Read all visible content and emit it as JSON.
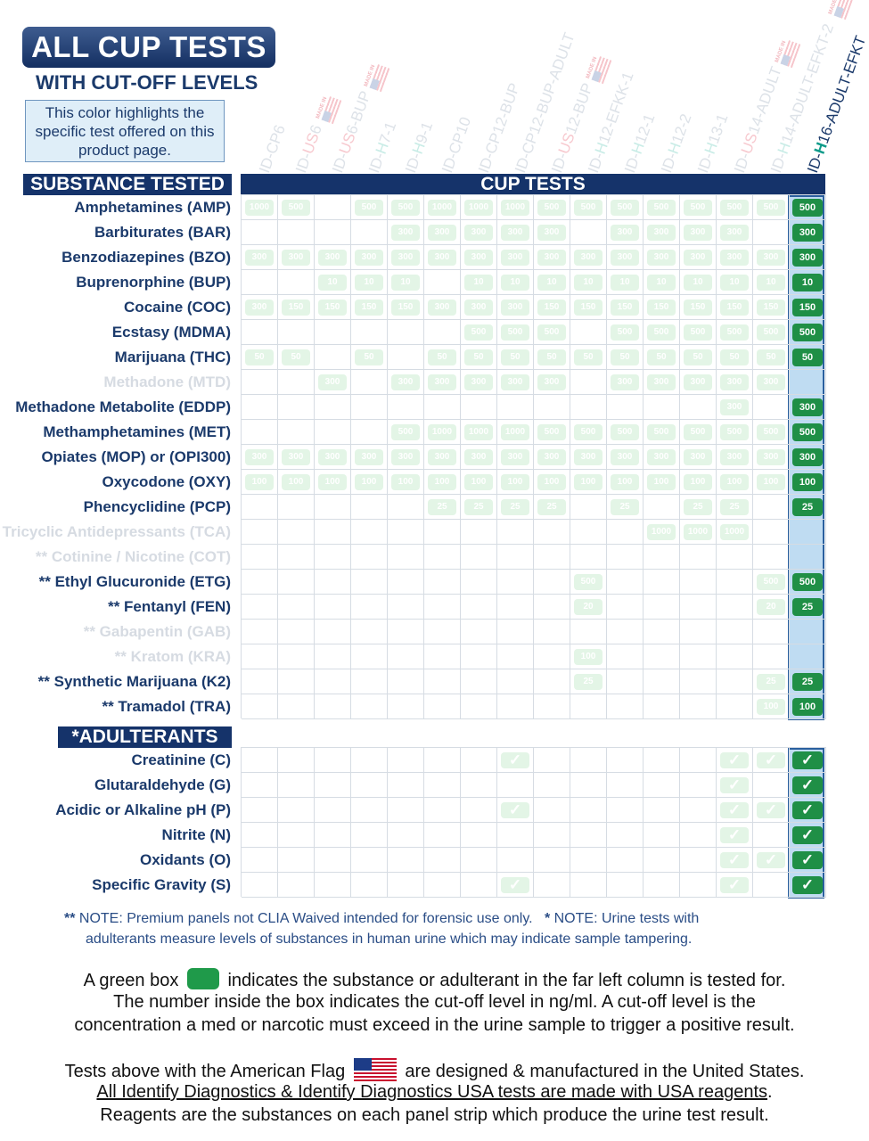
{
  "header": {
    "title": "ALL CUP TESTS",
    "subtitle": "WITH CUT-OFF LEVELS",
    "highlight_note": "This color highlights the specific test offered on this product page.",
    "flag_text": "MADE IN"
  },
  "table": {
    "substance_header": "SUBSTANCE TESTED",
    "cup_header": "CUP TESTS",
    "adulterants_header": "*ADULTERANTS",
    "columns": [
      {
        "pre": "ID-",
        "us": "",
        "h": "",
        "post": "CP6",
        "flag": false
      },
      {
        "pre": "ID-",
        "us": "US",
        "h": "",
        "post": "6",
        "flag": true
      },
      {
        "pre": "ID-",
        "us": "US",
        "h": "",
        "post": "6-BUP",
        "flag": true
      },
      {
        "pre": "ID-",
        "us": "",
        "h": "H",
        "post": "7-1",
        "flag": false
      },
      {
        "pre": "ID-",
        "us": "",
        "h": "H",
        "post": "9-1",
        "flag": false
      },
      {
        "pre": "ID-",
        "us": "",
        "h": "",
        "post": "CP10",
        "flag": false
      },
      {
        "pre": "ID-",
        "us": "",
        "h": "",
        "post": "CP12-BUP",
        "flag": false
      },
      {
        "pre": "ID-",
        "us": "",
        "h": "",
        "post": "CP12-BUP-ADULT",
        "flag": false
      },
      {
        "pre": "ID-",
        "us": "US",
        "h": "",
        "post": "12-BUP",
        "flag": true
      },
      {
        "pre": "ID-",
        "us": "",
        "h": "H",
        "post": "12-EFKK-1",
        "flag": false
      },
      {
        "pre": "ID-",
        "us": "",
        "h": "H",
        "post": "12-1",
        "flag": false
      },
      {
        "pre": "ID-",
        "us": "",
        "h": "H",
        "post": "12-2",
        "flag": false
      },
      {
        "pre": "ID-",
        "us": "",
        "h": "H",
        "post": "13-1",
        "flag": false
      },
      {
        "pre": "ID-",
        "us": "US",
        "h": "",
        "post": "14-ADULT",
        "flag": true
      },
      {
        "pre": "ID-",
        "us": "",
        "h": "H",
        "post": "14-ADULT-EFKT-2",
        "flag": true
      },
      {
        "pre": "ID-",
        "us": "",
        "h": "H",
        "post": "16-ADULT-EFKT",
        "flag": false,
        "active": true
      }
    ],
    "substances": [
      {
        "label": "Amphetamines (AMP)",
        "faded": false,
        "values": [
          "1000",
          "500",
          "",
          "500",
          "500",
          "1000",
          "1000",
          "1000",
          "500",
          "500",
          "500",
          "500",
          "500",
          "500",
          "500",
          "500"
        ]
      },
      {
        "label": "Barbiturates (BAR)",
        "faded": false,
        "values": [
          "",
          "",
          "",
          "",
          "300",
          "300",
          "300",
          "300",
          "300",
          "",
          "300",
          "300",
          "300",
          "300",
          "",
          "300"
        ]
      },
      {
        "label": "Benzodiazepines (BZO)",
        "faded": false,
        "values": [
          "300",
          "300",
          "300",
          "300",
          "300",
          "300",
          "300",
          "300",
          "300",
          "300",
          "300",
          "300",
          "300",
          "300",
          "300",
          "300"
        ]
      },
      {
        "label": "Buprenorphine (BUP)",
        "faded": false,
        "values": [
          "",
          "",
          "10",
          "10",
          "10",
          "",
          "10",
          "10",
          "10",
          "10",
          "10",
          "10",
          "10",
          "10",
          "10",
          "10"
        ]
      },
      {
        "label": "Cocaine (COC)",
        "faded": false,
        "values": [
          "300",
          "150",
          "150",
          "150",
          "150",
          "300",
          "300",
          "300",
          "150",
          "150",
          "150",
          "150",
          "150",
          "150",
          "150",
          "150"
        ]
      },
      {
        "label": "Ecstasy (MDMA)",
        "faded": false,
        "values": [
          "",
          "",
          "",
          "",
          "",
          "",
          "500",
          "500",
          "500",
          "",
          "500",
          "500",
          "500",
          "500",
          "500",
          "500"
        ]
      },
      {
        "label": "Marijuana (THC)",
        "faded": false,
        "values": [
          "50",
          "50",
          "",
          "50",
          "",
          "50",
          "50",
          "50",
          "50",
          "50",
          "50",
          "50",
          "50",
          "50",
          "50",
          "50"
        ]
      },
      {
        "label": "Methadone (MTD)",
        "faded": true,
        "values": [
          "",
          "",
          "300",
          "",
          "300",
          "300",
          "300",
          "300",
          "300",
          "",
          "300",
          "300",
          "300",
          "300",
          "300",
          ""
        ]
      },
      {
        "label": "Methadone Metabolite (EDDP)",
        "faded": false,
        "values": [
          "",
          "",
          "",
          "",
          "",
          "",
          "",
          "",
          "",
          "",
          "",
          "",
          "",
          "300",
          "",
          "300"
        ]
      },
      {
        "label": "Methamphetamines (MET)",
        "faded": false,
        "values": [
          "",
          "",
          "",
          "",
          "500",
          "1000",
          "1000",
          "1000",
          "500",
          "500",
          "500",
          "500",
          "500",
          "500",
          "500",
          "500"
        ]
      },
      {
        "label": "Opiates (MOP) or (OPI300)",
        "faded": false,
        "values": [
          "300",
          "300",
          "300",
          "300",
          "300",
          "300",
          "300",
          "300",
          "300",
          "300",
          "300",
          "300",
          "300",
          "300",
          "300",
          "300"
        ]
      },
      {
        "label": "Oxycodone (OXY)",
        "faded": false,
        "values": [
          "100",
          "100",
          "100",
          "100",
          "100",
          "100",
          "100",
          "100",
          "100",
          "100",
          "100",
          "100",
          "100",
          "100",
          "100",
          "100"
        ]
      },
      {
        "label": "Phencyclidine (PCP)",
        "faded": false,
        "values": [
          "",
          "",
          "",
          "",
          "",
          "25",
          "25",
          "25",
          "25",
          "",
          "25",
          "",
          "25",
          "25",
          "",
          "25"
        ]
      },
      {
        "label": "Tricyclic Antidepressants (TCA)",
        "faded": true,
        "values": [
          "",
          "",
          "",
          "",
          "",
          "",
          "",
          "",
          "",
          "",
          "",
          "1000",
          "1000",
          "1000",
          "",
          ""
        ]
      },
      {
        "label": "** Cotinine / Nicotine (COT)",
        "faded": true,
        "values": [
          "",
          "",
          "",
          "",
          "",
          "",
          "",
          "",
          "",
          "",
          "",
          "",
          "",
          "",
          "",
          ""
        ]
      },
      {
        "label": "** Ethyl Glucuronide (ETG)",
        "faded": false,
        "values": [
          "",
          "",
          "",
          "",
          "",
          "",
          "",
          "",
          "",
          "500",
          "",
          "",
          "",
          "",
          "500",
          "500"
        ]
      },
      {
        "label": "** Fentanyl (FEN)",
        "faded": false,
        "values": [
          "",
          "",
          "",
          "",
          "",
          "",
          "",
          "",
          "",
          "20",
          "",
          "",
          "",
          "",
          "20",
          "25"
        ]
      },
      {
        "label": "** Gabapentin (GAB)",
        "faded": true,
        "values": [
          "",
          "",
          "",
          "",
          "",
          "",
          "",
          "",
          "",
          "",
          "",
          "",
          "",
          "",
          "",
          ""
        ]
      },
      {
        "label": "** Kratom (KRA)",
        "faded": true,
        "values": [
          "",
          "",
          "",
          "",
          "",
          "",
          "",
          "",
          "",
          "100",
          "",
          "",
          "",
          "",
          "",
          ""
        ]
      },
      {
        "label": "** Synthetic Marijuana (K2)",
        "faded": false,
        "values": [
          "",
          "",
          "",
          "",
          "",
          "",
          "",
          "",
          "",
          "25",
          "",
          "",
          "",
          "",
          "25",
          "25"
        ]
      },
      {
        "label": "** Tramadol (TRA)",
        "faded": false,
        "values": [
          "",
          "",
          "",
          "",
          "",
          "",
          "",
          "",
          "",
          "",
          "",
          "",
          "",
          "",
          "100",
          "100"
        ]
      }
    ],
    "adulterants": [
      {
        "label": "Creatinine (C)",
        "values": [
          "",
          "",
          "",
          "",
          "",
          "",
          "",
          "✓",
          "",
          "",
          "",
          "",
          "",
          "✓",
          "✓",
          "✓"
        ]
      },
      {
        "label": "Glutaraldehyde (G)",
        "values": [
          "",
          "",
          "",
          "",
          "",
          "",
          "",
          "",
          "",
          "",
          "",
          "",
          "",
          "✓",
          "",
          "✓"
        ]
      },
      {
        "label": "Acidic or Alkaline pH (P)",
        "values": [
          "",
          "",
          "",
          "",
          "",
          "",
          "",
          "✓",
          "",
          "",
          "",
          "",
          "",
          "✓",
          "✓",
          "✓"
        ]
      },
      {
        "label": "Nitrite (N)",
        "values": [
          "",
          "",
          "",
          "",
          "",
          "",
          "",
          "",
          "",
          "",
          "",
          "",
          "",
          "✓",
          "",
          "✓"
        ]
      },
      {
        "label": "Oxidants (O)",
        "values": [
          "",
          "",
          "",
          "",
          "",
          "",
          "",
          "",
          "",
          "",
          "",
          "",
          "",
          "✓",
          "✓",
          "✓"
        ]
      },
      {
        "label": "Specific Gravity (S)",
        "values": [
          "",
          "",
          "",
          "",
          "",
          "",
          "",
          "✓",
          "",
          "",
          "",
          "",
          "",
          "✓",
          "",
          "✓"
        ]
      }
    ]
  },
  "notes": {
    "premium_marker": "**",
    "premium": "NOTE: Premium panels not CLIA Waived intended for forensic use only.",
    "urine_marker": "*",
    "urine": "NOTE: Urine tests with",
    "urine_cont": "adulterants measure levels of substances in human urine which may indicate sample tampering."
  },
  "legend": {
    "green_box_pre": "A green box",
    "green_box_post": "indicates the substance or adulterant in the far left column is tested for.",
    "line2": "The number inside the box indicates the cut-off level in ng/ml. A cut-off level is the",
    "line3": "concentration a med or narcotic must exceed in the urine sample to trigger a positive result.",
    "flag_pre": "Tests above with the American Flag",
    "flag_post": "are designed & manufactured in the United States.",
    "usa_reagents": "All Identify Diagnostics & Identify Diagnostics USA tests are made with USA reagents",
    "usa_reagents_period": ".",
    "reagents_def": "Reagents are the substances on each panel strip which produce the urine test result."
  },
  "colors": {
    "navy": "#15336a",
    "active_green": "#1f8f46",
    "faded_green": "#e3f5e6",
    "highlight_blue": "#bfdcf2"
  }
}
